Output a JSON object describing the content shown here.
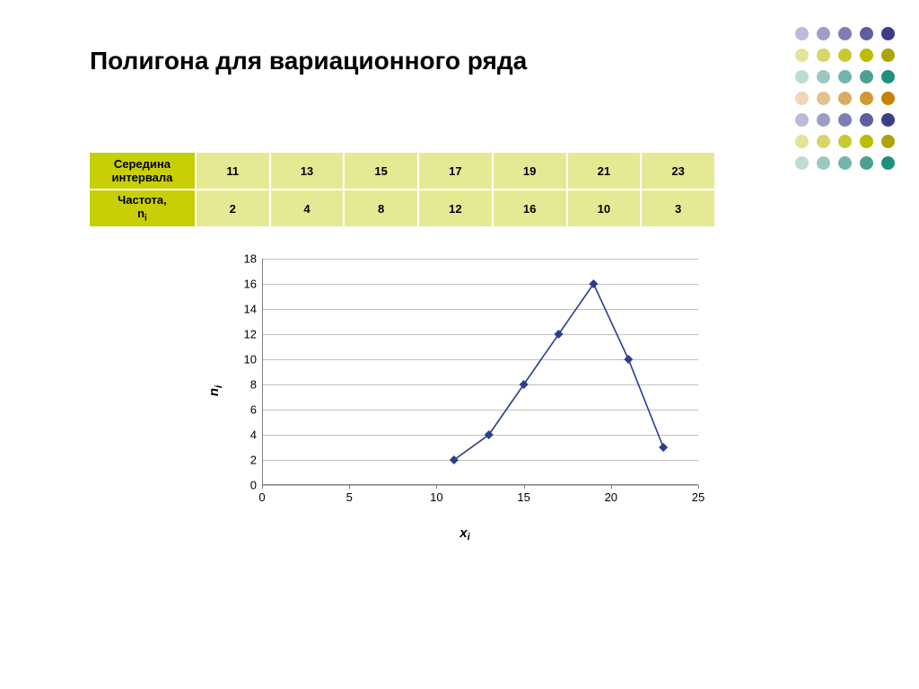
{
  "title": "Полигона для  вариационного ряда",
  "decor": {
    "cols": 5,
    "rows": 7,
    "dot_size": 15,
    "colors": [
      [
        "#babada",
        "#9d9dc8",
        "#7e7eb4",
        "#5e5e9f",
        "#3c3c89"
      ],
      [
        "#e3e39b",
        "#d6d669",
        "#c9c934",
        "#bcbc00",
        "#aca308"
      ],
      [
        "#bedbd5",
        "#9ac8bf",
        "#74b5a9",
        "#4ca292",
        "#1e907b"
      ],
      [
        "#eed7b6",
        "#e4c28c",
        "#dbac60",
        "#d19732",
        "#c78200"
      ],
      [
        "#babada",
        "#9d9dc8",
        "#7e7eb4",
        "#5e5e9f",
        "#3c3c89"
      ],
      [
        "#e3e39b",
        "#d6d669",
        "#c9c934",
        "#bcbc00",
        "#aca308"
      ],
      [
        "#bedbd5",
        "#9ac8bf",
        "#74b5a9",
        "#4ca292",
        "#1e907b"
      ]
    ]
  },
  "table": {
    "header_bg": "#c9cf07",
    "cell_bg": "#e6e994",
    "row1_label": "Середина интервала",
    "row2_label_main": "Частота,",
    "row2_label_sub_prefix": "n",
    "row2_label_sub": "i",
    "row1_values": [
      "11",
      "13",
      "15",
      "17",
      "19",
      "21",
      "23"
    ],
    "row2_values": [
      "2",
      "4",
      "8",
      "12",
      "16",
      "10",
      "3"
    ]
  },
  "chart": {
    "type": "line",
    "x_values": [
      11,
      13,
      15,
      17,
      19,
      21,
      23
    ],
    "y_values": [
      2,
      4,
      8,
      12,
      16,
      10,
      3
    ],
    "xlim": [
      0,
      25
    ],
    "ylim": [
      0,
      18
    ],
    "xticks": [
      0,
      5,
      10,
      15,
      20,
      25
    ],
    "yticks": [
      0,
      2,
      4,
      6,
      8,
      10,
      12,
      14,
      16,
      18
    ],
    "line_color": "#2a3d8f",
    "marker_color": "#2a3d8f",
    "marker_shape": "diamond",
    "marker_size": 5,
    "background_color": "#ffffff",
    "grid_color": "#c0c0c0",
    "axis_color": "#808080",
    "line_width": 1.6,
    "y_label_main": "n",
    "y_label_sub": "i",
    "x_label_main": "x",
    "x_label_sub": "i",
    "tick_fontsize": 13,
    "label_fontsize": 15
  }
}
